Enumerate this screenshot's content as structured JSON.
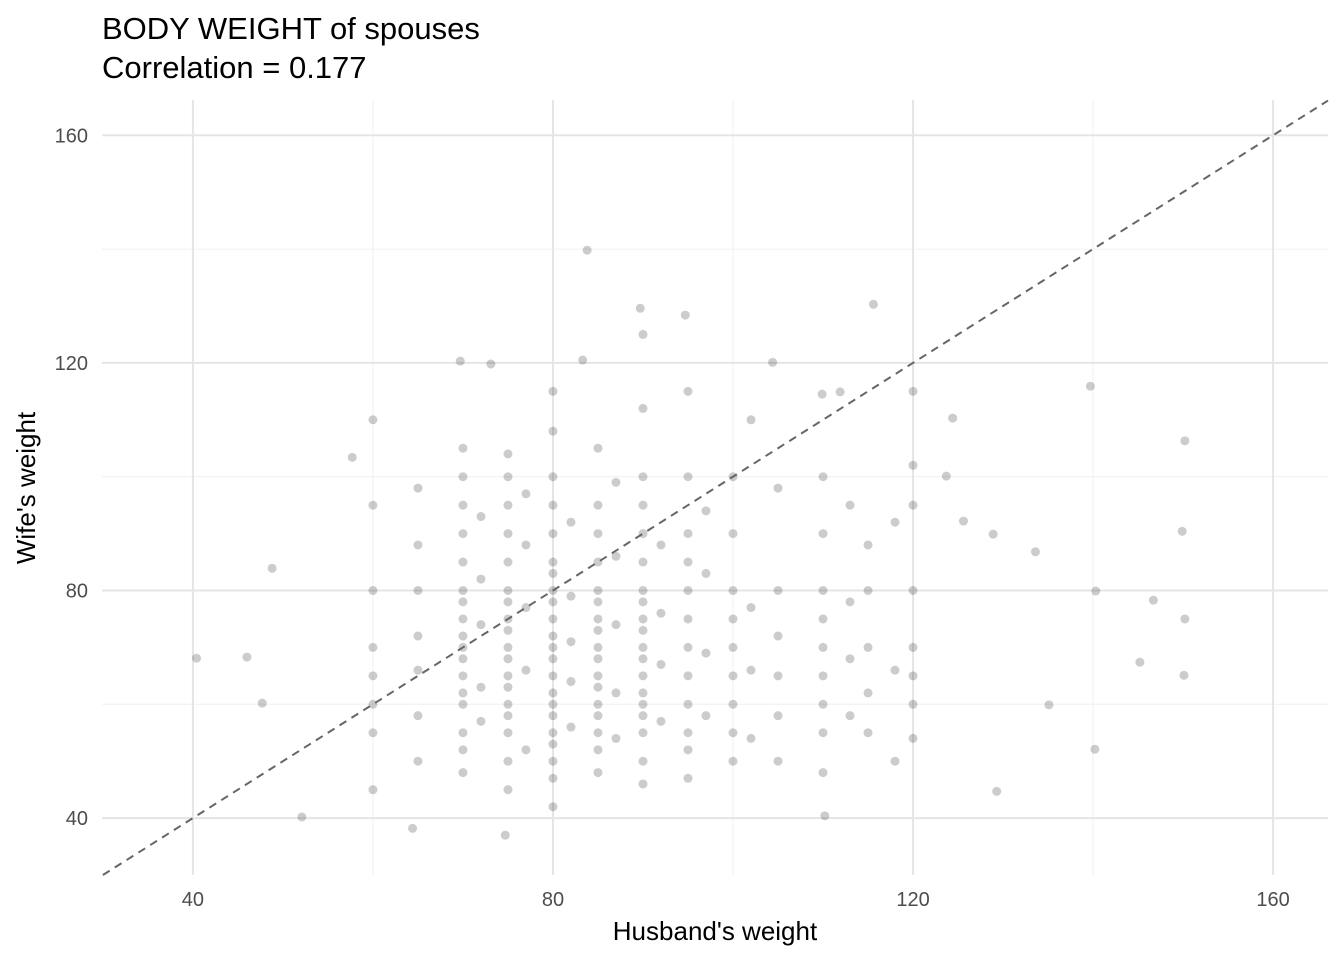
{
  "chart_data": {
    "type": "scatter",
    "title": "BODY WEIGHT of spouses",
    "subtitle": "Correlation = 0.177",
    "x_label": "Husband's weight",
    "y_label": "Wife's weight",
    "xlim": [
      29.9,
      166.1
    ],
    "ylim": [
      30,
      166.2
    ],
    "xticks": [
      40,
      80,
      120,
      160
    ],
    "yticks": [
      40,
      80,
      120,
      160
    ],
    "xminor": [
      60,
      100,
      140
    ],
    "yminor": [
      60,
      100,
      140
    ],
    "grid": true,
    "identity_line": true,
    "color": "#000000",
    "alpha": 0.2,
    "x": [
      60,
      60,
      60,
      60,
      60,
      60,
      60,
      60,
      65,
      65,
      65,
      65,
      65,
      65,
      65,
      70,
      70,
      70,
      70,
      70,
      70,
      70,
      70,
      70,
      70,
      70,
      70,
      70,
      70,
      70,
      70,
      70,
      72,
      72,
      72,
      72,
      72,
      75,
      75,
      75,
      75,
      75,
      75,
      75,
      75,
      75,
      75,
      75,
      75,
      75,
      75,
      75,
      75,
      75,
      75,
      77,
      77,
      77,
      77,
      77,
      80,
      80,
      80,
      80,
      80,
      80,
      80,
      80,
      80,
      80,
      80,
      80,
      80,
      80,
      80,
      80,
      80,
      80,
      80,
      80,
      80,
      80,
      82,
      82,
      82,
      82,
      82,
      85,
      85,
      85,
      85,
      85,
      85,
      85,
      85,
      85,
      85,
      85,
      85,
      85,
      85,
      85,
      85,
      85,
      87,
      87,
      87,
      87,
      87,
      90,
      90,
      90,
      90,
      90,
      90,
      90,
      90,
      90,
      90,
      90,
      90,
      90,
      90,
      90,
      90,
      90,
      90,
      90,
      92,
      92,
      92,
      92,
      95,
      95,
      95,
      95,
      95,
      95,
      95,
      95,
      95,
      95,
      95,
      95,
      97,
      97,
      97,
      97,
      100,
      100,
      100,
      100,
      100,
      100,
      100,
      100,
      100,
      102,
      102,
      102,
      102,
      105,
      105,
      105,
      105,
      105,
      105,
      110,
      110,
      110,
      110,
      110,
      110,
      110,
      110,
      110,
      113,
      113,
      113,
      113,
      115,
      115,
      115,
      115,
      115,
      118,
      118,
      118,
      120,
      120,
      120,
      120,
      120,
      120,
      120,
      120,
      40.4,
      46,
      47.7,
      48.8,
      52.1,
      57.7,
      83.8,
      89.7,
      115.6,
      94.7,
      69.7,
      73.1,
      83.3,
      104.4,
      139.7,
      150.2,
      149.9,
      150.2,
      150.1,
      140.2,
      140.3,
      146.7,
      145.2,
      135.1,
      129.3,
      133.6,
      110.2,
      74.7,
      64.4,
      123.7,
      111.9,
      109.9,
      124.4,
      125.6,
      128.9
    ],
    "values": [
      45,
      55,
      60,
      65,
      70,
      80,
      95,
      110,
      50,
      58,
      66,
      72,
      80,
      88,
      98,
      48,
      52,
      55,
      60,
      62,
      65,
      68,
      70,
      72,
      75,
      78,
      80,
      85,
      90,
      95,
      100,
      105,
      57,
      63,
      74,
      82,
      93,
      45,
      50,
      55,
      58,
      60,
      63,
      65,
      68,
      70,
      73,
      75,
      78,
      80,
      85,
      90,
      95,
      100,
      104,
      52,
      66,
      77,
      88,
      97,
      42,
      47,
      50,
      53,
      55,
      58,
      60,
      62,
      65,
      68,
      70,
      72,
      75,
      78,
      80,
      83,
      85,
      90,
      95,
      100,
      108,
      115,
      56,
      64,
      71,
      79,
      92,
      48,
      52,
      55,
      58,
      60,
      63,
      65,
      68,
      70,
      73,
      75,
      78,
      80,
      85,
      90,
      95,
      105,
      54,
      62,
      74,
      86,
      99,
      46,
      50,
      55,
      58,
      60,
      62,
      65,
      68,
      70,
      73,
      75,
      78,
      80,
      85,
      90,
      95,
      100,
      112,
      125,
      57,
      67,
      76,
      88,
      47,
      52,
      55,
      60,
      65,
      70,
      75,
      80,
      85,
      90,
      100,
      115,
      58,
      69,
      83,
      94,
      50,
      55,
      60,
      65,
      70,
      75,
      80,
      90,
      100,
      54,
      66,
      77,
      110,
      50,
      58,
      65,
      72,
      80,
      98,
      48,
      55,
      60,
      65,
      70,
      75,
      80,
      90,
      100,
      58,
      68,
      78,
      95,
      55,
      62,
      70,
      80,
      88,
      50,
      66,
      92,
      54,
      60,
      65,
      70,
      80,
      95,
      102,
      115,
      68.1,
      68.3,
      60.2,
      83.9,
      40.2,
      103.4,
      139.8,
      129.6,
      130.3,
      128.4,
      120.3,
      119.8,
      120.5,
      120.1,
      115.9,
      106.3,
      90.4,
      75,
      65.1,
      52.1,
      79.9,
      78.3,
      67.4,
      59.9,
      44.7,
      86.8,
      40.4,
      37,
      38.2,
      100.1,
      114.9,
      114.5,
      110.3,
      92.2,
      89.9
    ]
  }
}
